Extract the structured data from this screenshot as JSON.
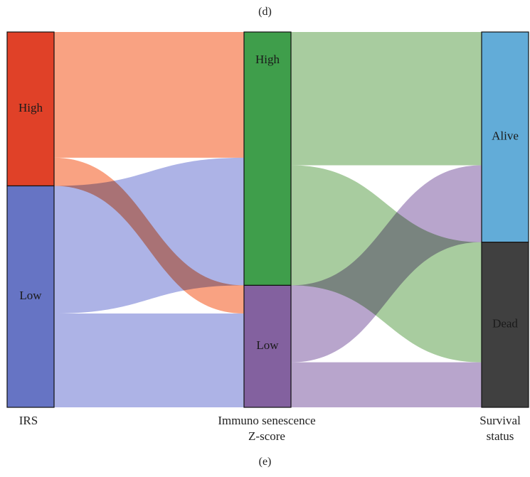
{
  "top_label": "(d)",
  "bottom_label": "(e)",
  "chart_data": {
    "type": "sankey",
    "stages": [
      {
        "name": "IRS",
        "label_lines": [
          "IRS"
        ]
      },
      {
        "name": "Immuno senescence Z-score",
        "label_lines": [
          "Immuno senescence",
          "Z-score"
        ]
      },
      {
        "name": "Survival status",
        "label_lines": [
          "Survival",
          "status"
        ]
      }
    ],
    "nodes": [
      {
        "id": "irs_high",
        "stage": 0,
        "label": "High",
        "value": 41,
        "color": "#e04128"
      },
      {
        "id": "irs_low",
        "stage": 0,
        "label": "Low",
        "value": 59,
        "color": "#6674c4"
      },
      {
        "id": "z_high",
        "stage": 1,
        "label": "High",
        "value": 67.5,
        "color": "#3f9e4b"
      },
      {
        "id": "z_low",
        "stage": 1,
        "label": "Low",
        "value": 32.5,
        "color": "#83619f"
      },
      {
        "id": "alive",
        "stage": 2,
        "label": "Alive",
        "value": 56,
        "color": "#62acd8"
      },
      {
        "id": "dead",
        "stage": 2,
        "label": "Dead",
        "value": 44,
        "color": "#404040"
      }
    ],
    "links": [
      {
        "source": "irs_high",
        "target": "z_high",
        "value": 33.5,
        "color": "#f9a282"
      },
      {
        "source": "irs_high",
        "target": "z_low",
        "value": 7.5,
        "color": "#f9a282"
      },
      {
        "source": "irs_low",
        "target": "z_high",
        "value": 34,
        "color": "#adb3e6"
      },
      {
        "source": "irs_low",
        "target": "z_low",
        "value": 25,
        "color": "#adb3e6"
      },
      {
        "source": "z_high",
        "target": "alive",
        "value": 35.5,
        "color": "#a8cc9f"
      },
      {
        "source": "z_high",
        "target": "dead",
        "value": 32,
        "color": "#a8cc9f"
      },
      {
        "source": "z_low",
        "target": "alive",
        "value": 20.5,
        "color": "#b8a5cc"
      },
      {
        "source": "z_low",
        "target": "dead",
        "value": 12,
        "color": "#b8a5cc"
      }
    ]
  }
}
